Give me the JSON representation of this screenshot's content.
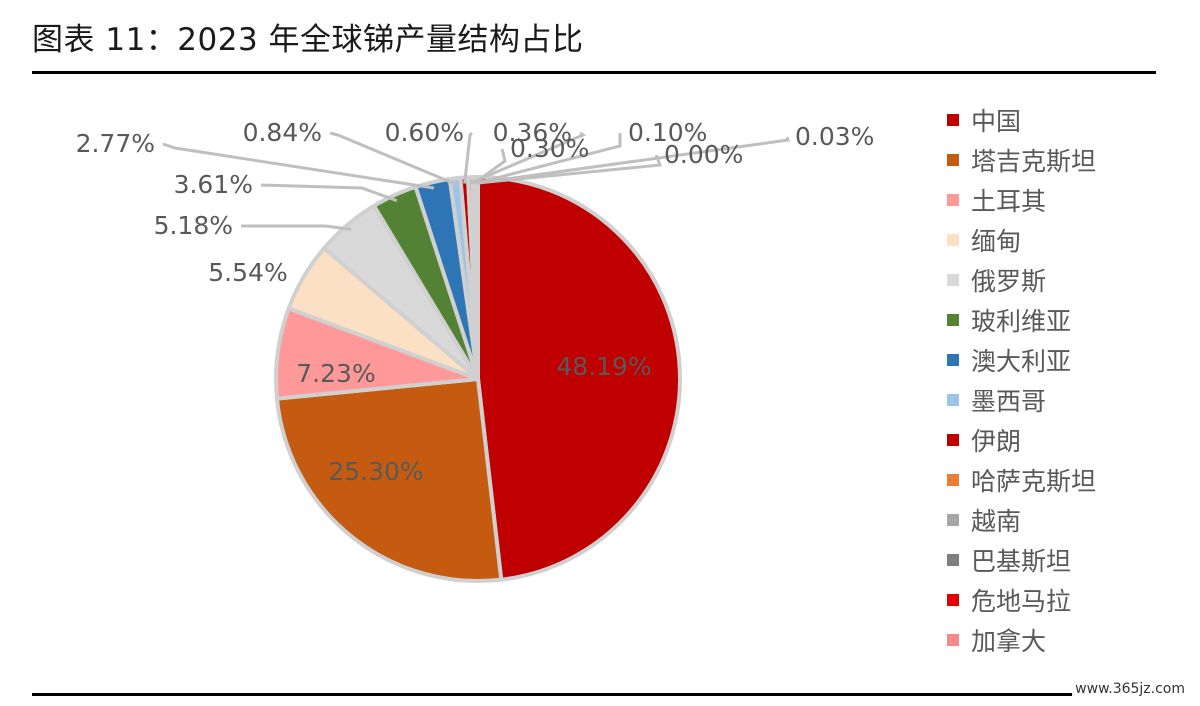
{
  "title": "图表 11：2023 年全球锑产量结构占比",
  "watermark": "www.365jz.com",
  "chart_data": {
    "type": "pie",
    "start_angle_deg": 0,
    "direction": "clockwise",
    "legend_position": "right",
    "slices": [
      {
        "name": "中国",
        "value": 48.19,
        "label": "48.19%",
        "color": "#C00000"
      },
      {
        "name": "塔吉克斯坦",
        "value": 25.3,
        "label": "25.30%",
        "color": "#C55A11"
      },
      {
        "name": "土耳其",
        "value": 7.23,
        "label": "7.23%",
        "color": "#FF9999"
      },
      {
        "name": "缅甸",
        "value": 5.54,
        "label": "5.54%",
        "color": "#FBE0C4"
      },
      {
        "name": "俄罗斯",
        "value": 5.18,
        "label": "5.18%",
        "color": "#D9D9D9"
      },
      {
        "name": "玻利维亚",
        "value": 3.61,
        "label": "3.61%",
        "color": "#548235"
      },
      {
        "name": "澳大利亚",
        "value": 2.77,
        "label": "2.77%",
        "color": "#2E75B6"
      },
      {
        "name": "墨西哥",
        "value": 0.84,
        "label": "0.84%",
        "color": "#9DC3E6"
      },
      {
        "name": "伊朗",
        "value": 0.6,
        "label": "0.60%",
        "color": "#C00000"
      },
      {
        "name": "哈萨克斯坦",
        "value": 0.36,
        "label": "0.36%",
        "color": "#ED7D31"
      },
      {
        "name": "越南",
        "value": 0.3,
        "label": "0.30%",
        "color": "#A6A6A6"
      },
      {
        "name": "巴基斯坦",
        "value": 0.1,
        "label": "0.10%",
        "color": "#7F7F7F"
      },
      {
        "name": "危地马拉",
        "value": 0.0,
        "label": "0.00%",
        "color": "#E00000"
      },
      {
        "name": "加拿大",
        "value": 0.03,
        "label": "0.03%",
        "color": "#F48A8A"
      }
    ]
  }
}
